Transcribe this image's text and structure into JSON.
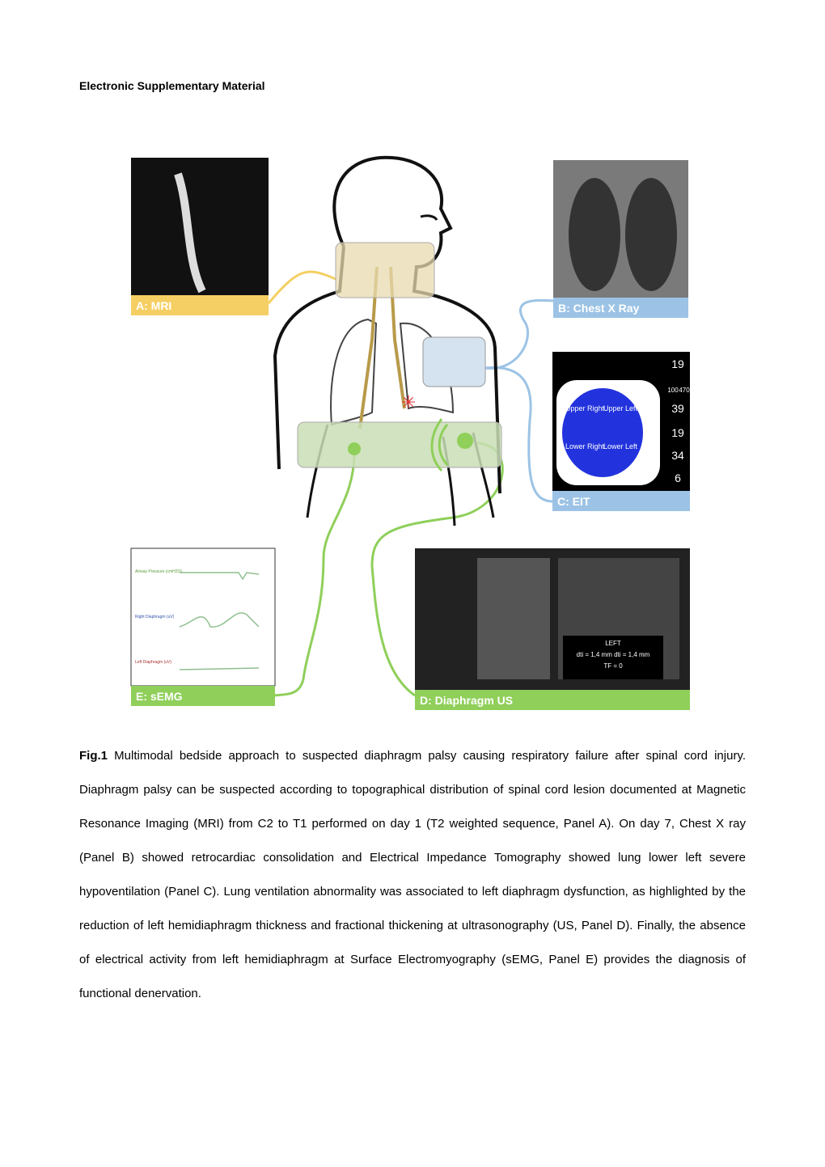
{
  "header": {
    "title": "Electronic Supplementary Material"
  },
  "figure": {
    "panels": {
      "a": "A: MRI",
      "b": "B: Chest X Ray",
      "c": "C: EIT",
      "d": "D: Diaphragm US",
      "e": "E: sEMG"
    },
    "eit": {
      "regions": [
        "Upper Right",
        "Upper Left",
        "Lower Right",
        "Lower Left"
      ],
      "readings": [
        19,
        100,
        470,
        39,
        19,
        34,
        6
      ]
    },
    "us": {
      "side": "LEFT",
      "measure": "dti = 1,4 mm  dti = 1,4 mm",
      "tf": "TF = 0"
    },
    "semg": {
      "traces": [
        "Airway Pressure (cmH2O)",
        "Right Diaphragm (uV)",
        "Left Diaphragm (uV)"
      ]
    }
  },
  "caption": {
    "label": "Fig.1",
    "text": "Multimodal bedside approach to suspected diaphragm palsy causing respiratory failure after spinal cord injury. Diaphragm palsy can be suspected according to topographical distribution of spinal cord lesion documented at Magnetic Resonance Imaging (MRI) from C2 to T1 performed on day 1 (T2 weighted sequence, Panel A). On day 7, Chest X ray (Panel B) showed retrocardiac consolidation and Electrical Impedance Tomography showed lung lower left severe hypoventilation (Panel C). Lung ventilation abnormality was associated to left diaphragm dysfunction, as highlighted by the reduction of left hemidiaphragm thickness and fractional thickening at ultrasonography (US, Panel D). Finally, the absence of electrical activity from left hemidiaphragm at Surface Electromyography (sEMG, Panel E) provides the diagnosis of functional denervation."
  }
}
